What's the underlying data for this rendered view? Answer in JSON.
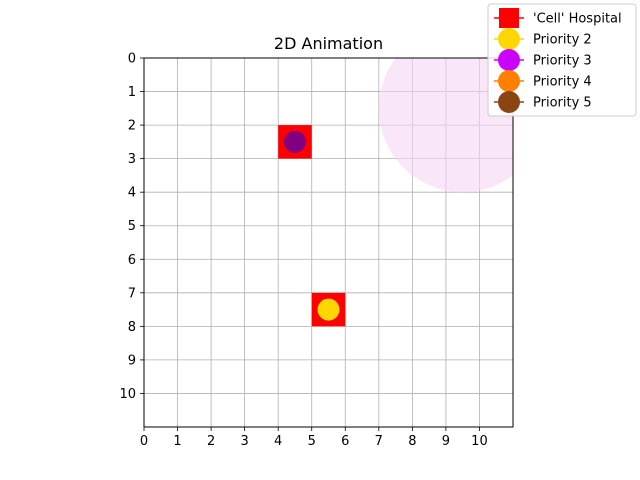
{
  "chart_data": {
    "type": "scatter",
    "title": "2D Animation",
    "xlabel": "",
    "ylabel": "",
    "xlim": [
      0,
      11
    ],
    "ylim": [
      0,
      11
    ],
    "y_inverted": true,
    "grid": true,
    "x_ticks": [
      "0",
      "1",
      "2",
      "3",
      "4",
      "5",
      "6",
      "7",
      "8",
      "9",
      "10"
    ],
    "y_ticks": [
      "0",
      "1",
      "2",
      "3",
      "4",
      "5",
      "6",
      "7",
      "8",
      "9",
      "10"
    ],
    "legend_position": "top-right",
    "legend": [
      {
        "label": "'Cell' Hospital",
        "marker": "square",
        "color": "#ff0000"
      },
      {
        "label": "Priority 2",
        "marker": "circle",
        "color": "#ffd700"
      },
      {
        "label": "Priority 3",
        "marker": "circle",
        "color": "#cc00ff"
      },
      {
        "label": "Priority 4",
        "marker": "circle",
        "color": "#ff8000"
      },
      {
        "label": "Priority 5",
        "marker": "circle",
        "color": "#8b4513"
      }
    ],
    "hospitals": [
      {
        "x": 4.5,
        "y": 2.5
      },
      {
        "x": 5.5,
        "y": 7.5
      }
    ],
    "patients": [
      {
        "x": 4.5,
        "y": 2.5,
        "color": "#800080"
      },
      {
        "x": 5.5,
        "y": 7.5,
        "color": "#ffd700"
      }
    ],
    "zone": {
      "x": 9.5,
      "y": 1.5,
      "r": 2.5,
      "color": "#f5d6f5"
    }
  }
}
